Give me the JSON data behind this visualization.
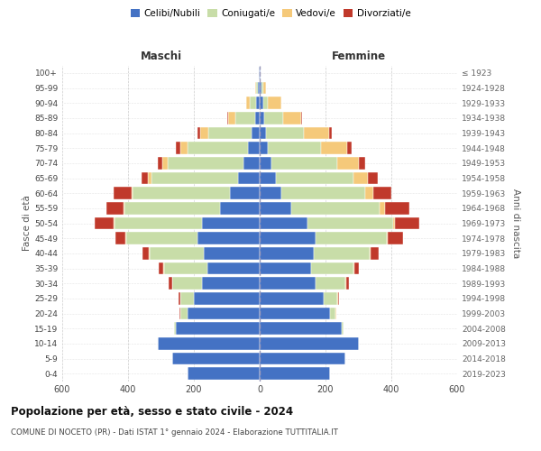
{
  "age_groups": [
    "0-4",
    "5-9",
    "10-14",
    "15-19",
    "20-24",
    "25-29",
    "30-34",
    "35-39",
    "40-44",
    "45-49",
    "50-54",
    "55-59",
    "60-64",
    "65-69",
    "70-74",
    "75-79",
    "80-84",
    "85-89",
    "90-94",
    "95-99",
    "100+"
  ],
  "birth_years": [
    "2019-2023",
    "2014-2018",
    "2009-2013",
    "2004-2008",
    "1999-2003",
    "1994-1998",
    "1989-1993",
    "1984-1988",
    "1979-1983",
    "1974-1978",
    "1969-1973",
    "1964-1968",
    "1959-1963",
    "1954-1958",
    "1949-1953",
    "1944-1948",
    "1939-1943",
    "1934-1938",
    "1929-1933",
    "1924-1928",
    "≤ 1923"
  ],
  "male_celibi": [
    220,
    265,
    310,
    255,
    220,
    200,
    175,
    160,
    170,
    190,
    175,
    120,
    90,
    65,
    50,
    35,
    25,
    15,
    10,
    5,
    2
  ],
  "male_coniugati": [
    0,
    0,
    0,
    5,
    20,
    40,
    90,
    130,
    165,
    215,
    265,
    290,
    295,
    265,
    230,
    185,
    130,
    60,
    20,
    5,
    0
  ],
  "male_vedovi": [
    0,
    0,
    0,
    0,
    2,
    2,
    2,
    2,
    2,
    2,
    5,
    5,
    5,
    10,
    15,
    20,
    25,
    20,
    10,
    5,
    0
  ],
  "male_divorziati": [
    0,
    0,
    0,
    0,
    2,
    5,
    10,
    15,
    20,
    30,
    55,
    50,
    55,
    20,
    15,
    15,
    10,
    5,
    2,
    0,
    0
  ],
  "female_celibi": [
    215,
    260,
    300,
    250,
    215,
    195,
    170,
    155,
    165,
    170,
    145,
    95,
    65,
    50,
    35,
    25,
    20,
    15,
    10,
    5,
    2
  ],
  "female_coniugati": [
    0,
    0,
    0,
    5,
    15,
    40,
    90,
    130,
    170,
    215,
    260,
    270,
    255,
    235,
    200,
    160,
    115,
    55,
    15,
    5,
    0
  ],
  "female_vedovi": [
    0,
    0,
    0,
    0,
    2,
    2,
    2,
    2,
    2,
    5,
    5,
    15,
    25,
    45,
    65,
    80,
    75,
    55,
    40,
    10,
    0
  ],
  "female_divorziati": [
    0,
    0,
    0,
    0,
    2,
    5,
    10,
    15,
    25,
    45,
    75,
    75,
    55,
    30,
    20,
    15,
    10,
    5,
    2,
    0,
    0
  ],
  "colors": {
    "celibi": "#4472C4",
    "coniugati": "#c8dda8",
    "vedovi": "#f5c97a",
    "divorziati": "#c0392b"
  },
  "title": "Popolazione per età, sesso e stato civile - 2024",
  "subtitle": "COMUNE DI NOCETO (PR) - Dati ISTAT 1° gennaio 2024 - Elaborazione TUTTITALIA.IT",
  "maschi_label": "Maschi",
  "femmine_label": "Femmine",
  "ylabel_left": "Fasce di età",
  "ylabel_right": "Anni di nascita",
  "xlim": 600,
  "background_color": "#ffffff"
}
